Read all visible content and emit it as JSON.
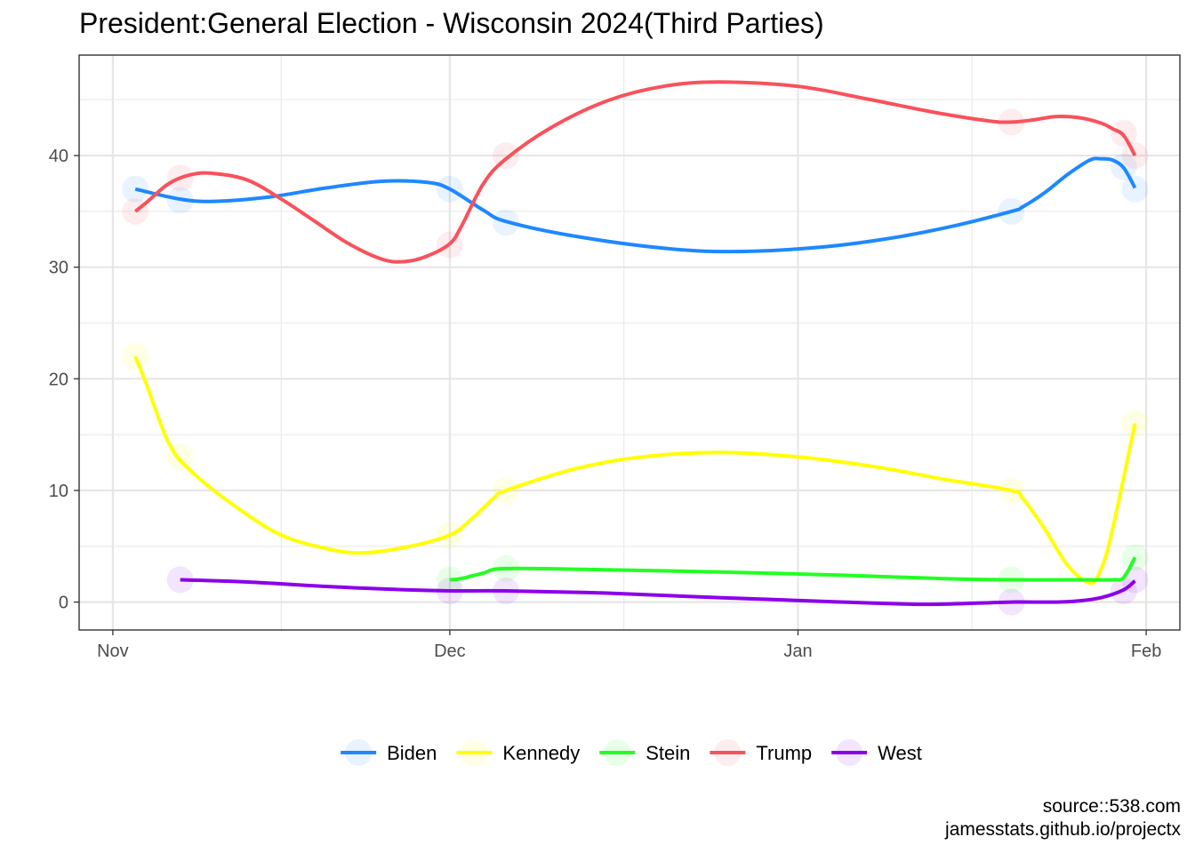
{
  "chart_data": {
    "type": "line",
    "title": "President:General Election - Wisconsin 2024(Third Parties)",
    "xlabel": "",
    "ylabel": "",
    "x_ticks": [
      {
        "label": "Nov",
        "date": "2023-11-01"
      },
      {
        "label": "Dec",
        "date": "2023-12-01"
      },
      {
        "label": "Jan",
        "date": "2024-01-01"
      },
      {
        "label": "Feb",
        "date": "2024-02-01"
      }
    ],
    "y_ticks": [
      0,
      10,
      20,
      30,
      40
    ],
    "xlim": [
      "2023-10-29",
      "2024-02-04"
    ],
    "ylim": [
      -2.5,
      49
    ],
    "grid": true,
    "legend_position": "bottom",
    "series": [
      {
        "name": "Biden",
        "color": "#1e88ff",
        "points": [
          [
            "2023-11-03",
            37
          ],
          [
            "2023-11-07",
            36
          ],
          [
            "2023-12-01",
            37
          ],
          [
            "2023-12-06",
            34
          ],
          [
            "2024-01-20",
            35
          ],
          [
            "2024-01-30",
            39
          ],
          [
            "2024-01-31",
            37
          ]
        ],
        "trend": [
          [
            "2023-11-03",
            37
          ],
          [
            "2023-11-07",
            36.1
          ],
          [
            "2023-11-10",
            35.9
          ],
          [
            "2023-11-15",
            36.3
          ],
          [
            "2023-11-20",
            37.1
          ],
          [
            "2023-11-25",
            37.7
          ],
          [
            "2023-11-29",
            37.6
          ],
          [
            "2023-12-01",
            37
          ],
          [
            "2023-12-04",
            35.1
          ],
          [
            "2023-12-06",
            34.1
          ],
          [
            "2023-12-12",
            32.8
          ],
          [
            "2023-12-20",
            31.7
          ],
          [
            "2023-12-26",
            31.4
          ],
          [
            "2024-01-02",
            31.7
          ],
          [
            "2024-01-08",
            32.4
          ],
          [
            "2024-01-14",
            33.5
          ],
          [
            "2024-01-20",
            35
          ],
          [
            "2024-01-21",
            35.4
          ],
          [
            "2024-01-23",
            36.7
          ],
          [
            "2024-01-25",
            38.3
          ],
          [
            "2024-01-27",
            39.6
          ],
          [
            "2024-01-28",
            39.7
          ],
          [
            "2024-01-29",
            39.6
          ],
          [
            "2024-01-30",
            38.9
          ],
          [
            "2024-01-31",
            37.1
          ]
        ]
      },
      {
        "name": "Kennedy",
        "color": "#ffff00",
        "points": [
          [
            "2023-11-03",
            22
          ],
          [
            "2023-11-07",
            13
          ],
          [
            "2023-12-01",
            6
          ],
          [
            "2023-12-06",
            10
          ],
          [
            "2024-01-20",
            10
          ],
          [
            "2024-01-31",
            16
          ]
        ],
        "trend": [
          [
            "2023-11-03",
            22
          ],
          [
            "2023-11-04",
            19.5
          ],
          [
            "2023-11-06",
            14.2
          ],
          [
            "2023-11-08",
            11.7
          ],
          [
            "2023-11-12",
            8.5
          ],
          [
            "2023-11-16",
            6
          ],
          [
            "2023-11-20",
            4.8
          ],
          [
            "2023-11-23",
            4.4
          ],
          [
            "2023-11-27",
            4.9
          ],
          [
            "2023-12-01",
            6
          ],
          [
            "2023-12-03",
            7.5
          ],
          [
            "2023-12-05",
            9.4
          ],
          [
            "2023-12-06",
            10
          ],
          [
            "2023-12-12",
            11.9
          ],
          [
            "2023-12-18",
            13
          ],
          [
            "2023-12-25",
            13.4
          ],
          [
            "2024-01-01",
            13
          ],
          [
            "2024-01-08",
            12.1
          ],
          [
            "2024-01-14",
            11
          ],
          [
            "2024-01-20",
            10
          ],
          [
            "2024-01-21",
            9.3
          ],
          [
            "2024-01-23",
            6.5
          ],
          [
            "2024-01-25",
            3.3
          ],
          [
            "2024-01-27",
            1.7
          ],
          [
            "2024-01-28",
            3
          ],
          [
            "2024-01-29",
            6.5
          ],
          [
            "2024-01-31",
            16
          ]
        ]
      },
      {
        "name": "Stein",
        "color": "#22ff22",
        "points": [
          [
            "2023-12-01",
            2
          ],
          [
            "2023-12-06",
            3
          ],
          [
            "2024-01-20",
            2
          ],
          [
            "2024-01-31",
            4
          ]
        ],
        "trend": [
          [
            "2023-12-01",
            2
          ],
          [
            "2023-12-02",
            2.1
          ],
          [
            "2023-12-04",
            2.6
          ],
          [
            "2023-12-06",
            3
          ],
          [
            "2023-12-15",
            2.9
          ],
          [
            "2023-12-25",
            2.7
          ],
          [
            "2024-01-05",
            2.4
          ],
          [
            "2024-01-14",
            2.1
          ],
          [
            "2024-01-20",
            2
          ],
          [
            "2024-01-26",
            2
          ],
          [
            "2024-01-29",
            2
          ],
          [
            "2024-01-30",
            2.2
          ],
          [
            "2024-01-31",
            4
          ]
        ]
      },
      {
        "name": "Trump",
        "color": "#f8525c",
        "points": [
          [
            "2023-11-03",
            35
          ],
          [
            "2023-11-07",
            38
          ],
          [
            "2023-12-01",
            32
          ],
          [
            "2023-12-06",
            40
          ],
          [
            "2024-01-20",
            43
          ],
          [
            "2024-01-30",
            42
          ],
          [
            "2024-01-31",
            40
          ]
        ],
        "trend": [
          [
            "2023-11-03",
            35
          ],
          [
            "2023-11-04",
            35.8
          ],
          [
            "2023-11-06",
            37.5
          ],
          [
            "2023-11-08",
            38.3
          ],
          [
            "2023-11-10",
            38.4
          ],
          [
            "2023-11-13",
            37.8
          ],
          [
            "2023-11-16",
            36.1
          ],
          [
            "2023-11-19",
            34.1
          ],
          [
            "2023-11-22",
            32.1
          ],
          [
            "2023-11-25",
            30.7
          ],
          [
            "2023-11-27",
            30.5
          ],
          [
            "2023-11-29",
            31
          ],
          [
            "2023-12-01",
            32.1
          ],
          [
            "2023-12-02",
            33.6
          ],
          [
            "2023-12-04",
            37.5
          ],
          [
            "2023-12-06",
            39.7
          ],
          [
            "2023-12-10",
            42.5
          ],
          [
            "2023-12-15",
            44.9
          ],
          [
            "2023-12-20",
            46.2
          ],
          [
            "2023-12-25",
            46.6
          ],
          [
            "2024-01-01",
            46.2
          ],
          [
            "2024-01-07",
            45.1
          ],
          [
            "2024-01-13",
            43.9
          ],
          [
            "2024-01-18",
            43.1
          ],
          [
            "2024-01-20",
            43
          ],
          [
            "2024-01-22",
            43.2
          ],
          [
            "2024-01-24",
            43.5
          ],
          [
            "2024-01-26",
            43.4
          ],
          [
            "2024-01-28",
            42.9
          ],
          [
            "2024-01-29",
            42.4
          ],
          [
            "2024-01-30",
            41.8
          ],
          [
            "2024-01-31",
            40
          ]
        ]
      },
      {
        "name": "West",
        "color": "#8c00e8",
        "points": [
          [
            "2023-11-07",
            2
          ],
          [
            "2023-12-01",
            1
          ],
          [
            "2023-12-06",
            1
          ],
          [
            "2024-01-20",
            0
          ],
          [
            "2024-01-30",
            1
          ],
          [
            "2024-01-31",
            2
          ]
        ],
        "trend": [
          [
            "2023-11-07",
            2
          ],
          [
            "2023-11-13",
            1.8
          ],
          [
            "2023-11-20",
            1.4
          ],
          [
            "2023-11-27",
            1.1
          ],
          [
            "2023-12-01",
            1
          ],
          [
            "2023-12-06",
            1
          ],
          [
            "2023-12-15",
            0.8
          ],
          [
            "2023-12-25",
            0.4
          ],
          [
            "2024-01-05",
            0
          ],
          [
            "2024-01-12",
            -0.2
          ],
          [
            "2024-01-17",
            -0.1
          ],
          [
            "2024-01-20",
            0
          ],
          [
            "2024-01-24",
            0
          ],
          [
            "2024-01-26",
            0.1
          ],
          [
            "2024-01-28",
            0.4
          ],
          [
            "2024-01-30",
            1.1
          ],
          [
            "2024-01-31",
            1.9
          ]
        ]
      }
    ]
  },
  "caption": {
    "line1": "source::538.com",
    "line2": "jamesstats.github.io/projectx"
  }
}
